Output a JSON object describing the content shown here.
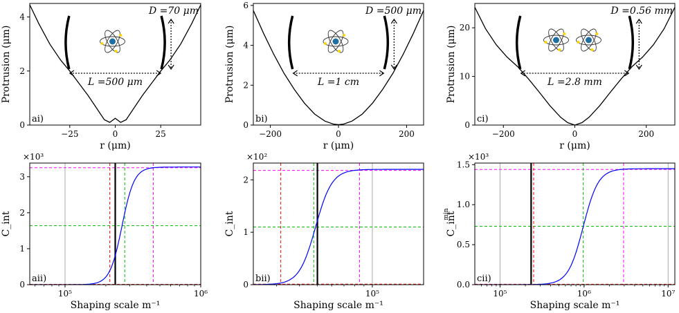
{
  "colors": {
    "curve": "#000000",
    "sigmoid": "#0000ff",
    "red": "#ff0000",
    "green": "#00bb00",
    "magenta": "#ff00ff",
    "gray": "#aaaaaa",
    "atom_core": "#1f6fa0",
    "electron": "#ffd700"
  },
  "chart_data": [
    {
      "type": "line",
      "panel_label": "ai)",
      "xlabel": "r (μm)",
      "ylabel": "Protrusion (μm)",
      "xlim": [
        -47,
        47
      ],
      "ylim": [
        0,
        4.5
      ],
      "xticks": [
        {
          "v": -25,
          "label": "−25"
        },
        {
          "v": 0,
          "label": "0"
        },
        {
          "v": 25,
          "label": "25"
        }
      ],
      "yticks": [
        {
          "v": 0,
          "label": "0"
        },
        {
          "v": 2,
          "label": "2"
        },
        {
          "v": 4,
          "label": "4"
        }
      ],
      "curve": {
        "x": [
          -47,
          -42,
          -36,
          -30,
          -25,
          -20,
          -15,
          -10,
          -6,
          -3,
          0,
          3,
          6,
          10,
          15,
          20,
          25,
          30,
          36,
          42,
          47
        ],
        "y": [
          4.45,
          3.75,
          3.0,
          2.4,
          2.0,
          1.55,
          1.1,
          0.6,
          0.2,
          0.1,
          0.25,
          0.1,
          0.2,
          0.6,
          1.1,
          1.55,
          2.0,
          2.4,
          3.0,
          3.75,
          4.45
        ]
      },
      "annotation_D": "D =70 μm",
      "annotation_L": "L =500 μm",
      "atoms": 1
    },
    {
      "type": "line",
      "panel_label": "bi)",
      "xlabel": "r (μm)",
      "ylabel": "Protrusion (μm)",
      "xlim": [
        -250,
        250
      ],
      "ylim": [
        0,
        6.1
      ],
      "xticks": [
        {
          "v": -200,
          "label": "−200"
        },
        {
          "v": 0,
          "label": "0"
        },
        {
          "v": 200,
          "label": "200"
        }
      ],
      "yticks": [
        {
          "v": 0,
          "label": "0"
        },
        {
          "v": 2,
          "label": "2"
        },
        {
          "v": 4,
          "label": "4"
        },
        {
          "v": 6,
          "label": "6"
        }
      ],
      "curve": {
        "x": [
          -250,
          -220,
          -190,
          -160,
          -130,
          -100,
          -70,
          -40,
          -15,
          0,
          15,
          40,
          70,
          100,
          130,
          160,
          190,
          220,
          250
        ],
        "y": [
          5.75,
          4.6,
          3.55,
          2.6,
          1.8,
          1.1,
          0.55,
          0.2,
          0.05,
          0.02,
          0.05,
          0.2,
          0.55,
          1.1,
          1.8,
          2.6,
          3.55,
          4.6,
          5.75
        ]
      },
      "annotation_D": "D =500 μm",
      "annotation_L": "L =1 cm",
      "atoms": 1
    },
    {
      "type": "line",
      "panel_label": "ci)",
      "xlabel": "r (μm)",
      "ylabel": "Protrusion (μm)",
      "xlim": [
        -280,
        280
      ],
      "ylim": [
        0,
        25
      ],
      "xticks": [
        {
          "v": -200,
          "label": "−200"
        },
        {
          "v": 0,
          "label": "0"
        },
        {
          "v": 200,
          "label": "200"
        }
      ],
      "yticks": [
        {
          "v": 0,
          "label": "0"
        },
        {
          "v": 10,
          "label": "10"
        },
        {
          "v": 20,
          "label": "20"
        }
      ],
      "curve": {
        "x": [
          -280,
          -250,
          -220,
          -190,
          -160,
          -130,
          -100,
          -70,
          -40,
          -20,
          0,
          20,
          40,
          70,
          100,
          130,
          160,
          190,
          220,
          250,
          280
        ],
        "y": [
          24.2,
          19.8,
          16.5,
          14.0,
          12.0,
          9.5,
          6.8,
          4.0,
          1.6,
          0.5,
          0.0,
          0.5,
          1.6,
          4.0,
          6.8,
          9.5,
          12.0,
          14.0,
          16.5,
          19.8,
          24.2
        ]
      },
      "annotation_D": "D =0.56 mm",
      "annotation_L": "L =2.8 mm",
      "atoms": 2
    },
    {
      "type": "line",
      "scale": "log",
      "panel_label": "aii)",
      "xlabel": "Shaping scale m⁻¹",
      "ylabel": "C_int",
      "ylabel_sup": "",
      "multiplier": "×10³",
      "xlim_log10": [
        4.74,
        6.0
      ],
      "ylim": [
        0,
        3.38
      ],
      "xticks": [
        {
          "log": 5,
          "label": "10⁵"
        },
        {
          "log": 6,
          "label": "10⁶"
        }
      ],
      "yticks": [
        {
          "v": 0,
          "label": "0"
        },
        {
          "v": 1,
          "label": "1"
        },
        {
          "v": 2,
          "label": "2"
        },
        {
          "v": 3,
          "label": "3"
        }
      ],
      "sigmoid": {
        "center_log10": 5.42,
        "width": 0.045,
        "ymax": 3.27
      },
      "vlines": {
        "gray": [
          5.0,
          6.0
        ],
        "red": [
          5.33
        ],
        "green": [
          5.44
        ],
        "magenta": [
          5.65
        ],
        "black": [
          5.37
        ]
      },
      "hlines": {
        "red": [
          0.01
        ],
        "green": [
          1.64
        ],
        "magenta": [
          3.25
        ]
      }
    },
    {
      "type": "line",
      "scale": "log",
      "panel_label": "bii)",
      "xlabel": "Shaping scale m⁻¹",
      "ylabel": "C_int",
      "ylabel_sup": "",
      "multiplier": "×10²",
      "xlim_log10": [
        4.35,
        5.28
      ],
      "ylim": [
        0,
        2.32
      ],
      "xticks": [
        {
          "log": 5,
          "label": "10⁵"
        }
      ],
      "yticks": [
        {
          "v": 0,
          "label": "0"
        },
        {
          "v": 1,
          "label": "1"
        },
        {
          "v": 2,
          "label": "2"
        }
      ],
      "sigmoid": {
        "center_log10": 4.69,
        "width": 0.045,
        "ymax": 2.2
      },
      "vlines": {
        "gray": [
          5.0
        ],
        "red": [
          4.5
        ],
        "green": [
          4.68
        ],
        "magenta": [
          4.93
        ],
        "black": [
          4.7
        ]
      },
      "hlines": {
        "red": [
          0.01
        ],
        "green": [
          1.1
        ],
        "magenta": [
          2.18
        ]
      }
    },
    {
      "type": "line",
      "scale": "log",
      "panel_label": "cii)",
      "xlabel": "Shaping scale m⁻¹",
      "ylabel": "C_int",
      "ylabel_sup": "min",
      "multiplier": "×10³",
      "xlim_log10": [
        4.7,
        7.08
      ],
      "ylim": [
        0,
        1.52
      ],
      "xticks": [
        {
          "log": 5,
          "label": "10⁵"
        },
        {
          "log": 6,
          "label": "10⁶"
        },
        {
          "log": 7,
          "label": "10⁷"
        }
      ],
      "yticks": [
        {
          "v": 0,
          "label": "0.0"
        },
        {
          "v": 0.5,
          "label": "0.5"
        },
        {
          "v": 1.0,
          "label": "1.0"
        },
        {
          "v": 1.5,
          "label": "1.5"
        }
      ],
      "sigmoid": {
        "center_log10": 5.99,
        "width": 0.09,
        "ymax": 1.45
      },
      "vlines": {
        "gray": [
          5.0,
          7.0
        ],
        "red": [
          5.4
        ],
        "green": [
          5.99
        ],
        "magenta": [
          6.47
        ],
        "black": [
          5.37
        ]
      },
      "hlines": {
        "red": [
          0.005
        ],
        "green": [
          0.73
        ],
        "magenta": [
          1.44
        ]
      }
    }
  ]
}
